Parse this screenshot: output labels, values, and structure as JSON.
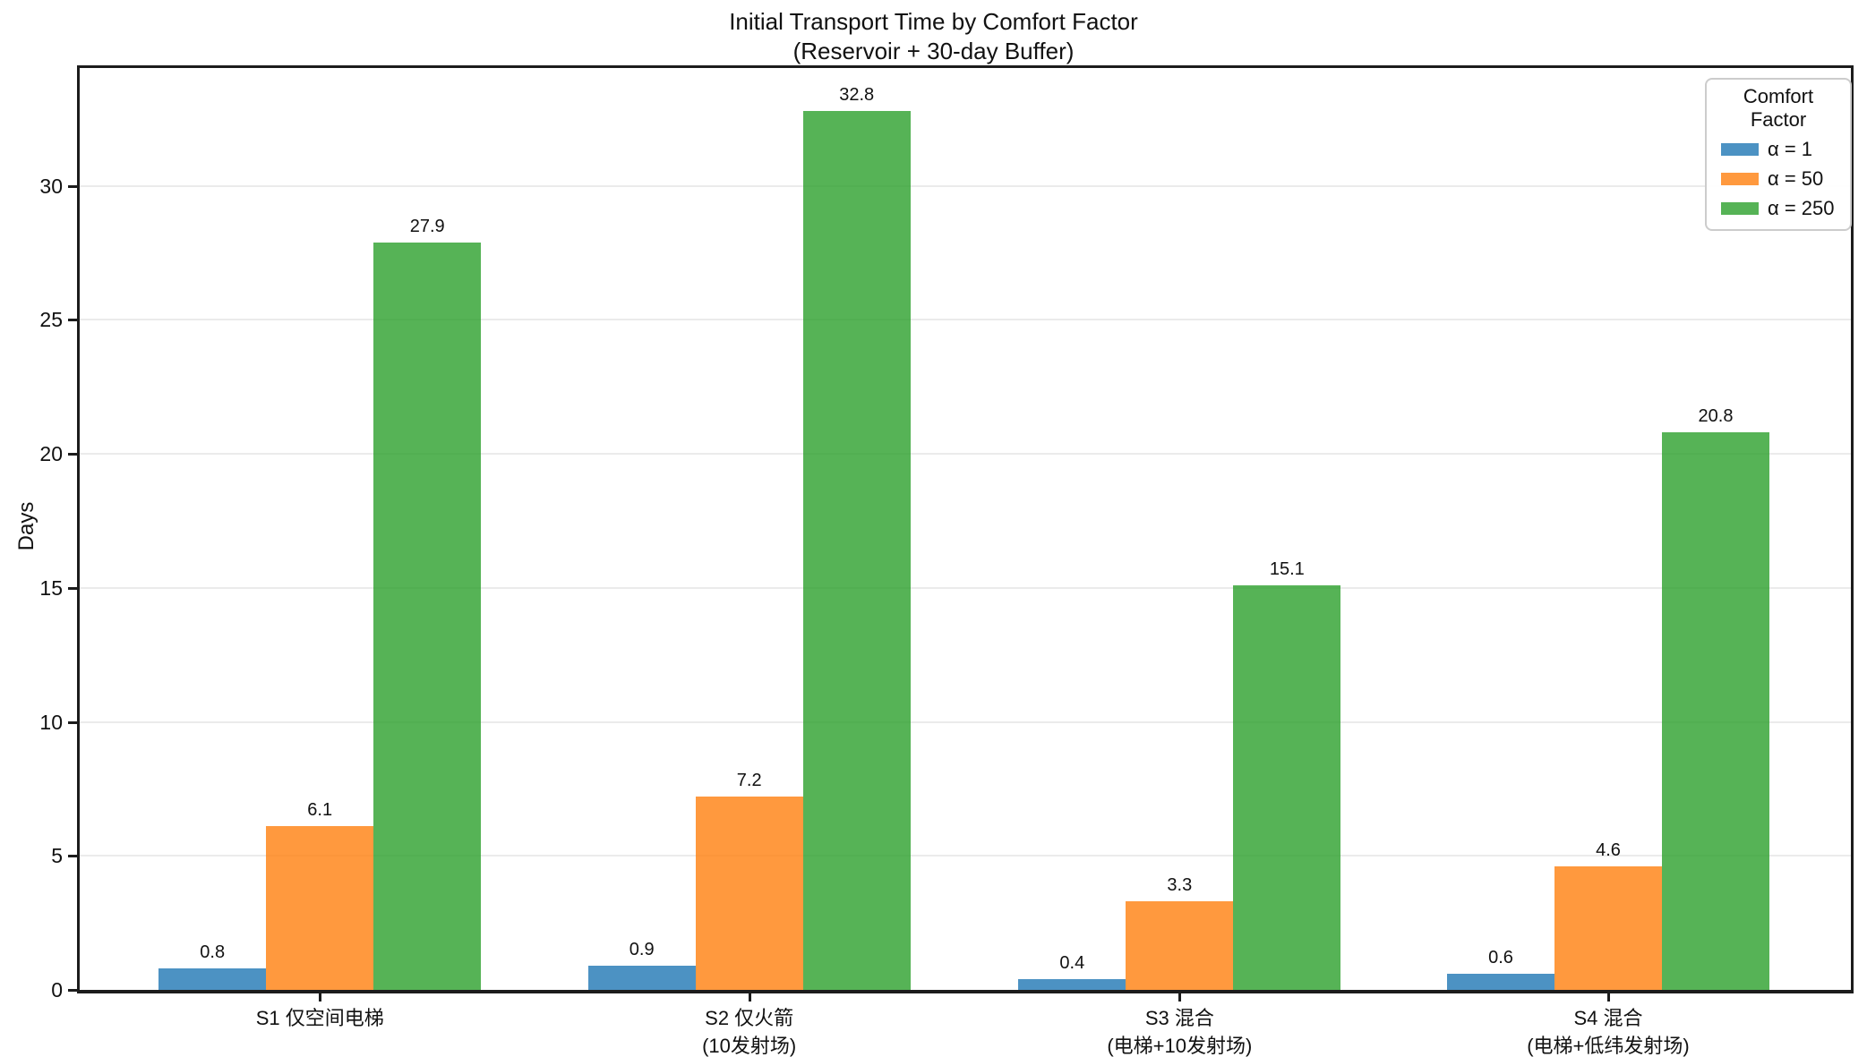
{
  "title": {
    "line1": "Initial Transport Time by Comfort Factor",
    "line2": "(Reservoir + 30-day Buffer)"
  },
  "legend": {
    "title": "Comfort Factor"
  },
  "chart_data": {
    "type": "bar",
    "title": "Initial Transport Time by Comfort Factor (Reservoir + 30-day Buffer)",
    "categories": [
      "S1 仅空间电梯",
      "S2 仅火箭\n(10发射场)",
      "S3 混合\n(电梯+10发射场)",
      "S4 混合\n(电梯+低纬发射场)"
    ],
    "series": [
      {
        "name": "α = 1",
        "color": "#1f77b4",
        "values": [
          0.8,
          0.9,
          0.4,
          0.6
        ]
      },
      {
        "name": "α = 50",
        "color": "#ff7f0e",
        "values": [
          6.1,
          7.2,
          3.3,
          4.6
        ]
      },
      {
        "name": "α = 250",
        "color": "#2ca02c",
        "values": [
          27.9,
          32.8,
          15.1,
          20.8
        ]
      }
    ],
    "bar_opacity": 0.8,
    "value_labels": [
      "0.8",
      "0.9",
      "0.4",
      "0.6",
      "6.1",
      "7.2",
      "3.3",
      "4.6",
      "27.9",
      "32.8",
      "15.1",
      "20.8"
    ],
    "xlabel": "",
    "ylabel": "Days",
    "ylim": [
      0,
      34.4
    ],
    "yticks": [
      0,
      5,
      10,
      15,
      20,
      25,
      30
    ],
    "grid": true,
    "legend_title": "Comfort Factor",
    "legend_position": "upper right",
    "axis_color": "#1c1c1c",
    "grid_color": "#ebebeb"
  }
}
